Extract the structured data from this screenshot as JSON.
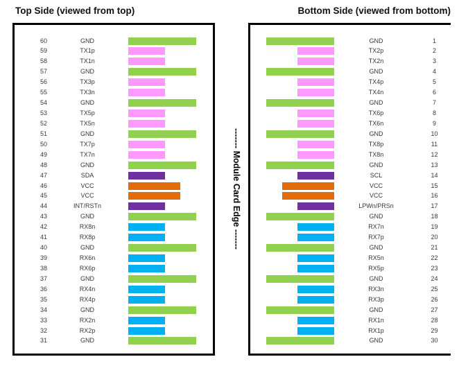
{
  "titles": {
    "left": "Top Side (viewed from top)",
    "right": "Bottom Side (viewed from bottom)"
  },
  "edge_label": "------- Module Card Edge -------",
  "colors": {
    "gnd": "#92d050",
    "tx": "#ff99ff",
    "rx": "#00b0f0",
    "vcc": "#e36c0a",
    "ctrl": "#7030a0"
  },
  "bar_widths": {
    "gnd": 98,
    "vcc": 75,
    "signal": 53
  },
  "top_side": {
    "pins": [
      {
        "pin": 60,
        "name": "GND",
        "type": "gnd"
      },
      {
        "pin": 59,
        "name": "TX1p",
        "type": "tx"
      },
      {
        "pin": 58,
        "name": "TX1n",
        "type": "tx"
      },
      {
        "pin": 57,
        "name": "GND",
        "type": "gnd"
      },
      {
        "pin": 56,
        "name": "TX3p",
        "type": "tx"
      },
      {
        "pin": 55,
        "name": "TX3n",
        "type": "tx"
      },
      {
        "pin": 54,
        "name": "GND",
        "type": "gnd"
      },
      {
        "pin": 53,
        "name": "TX5p",
        "type": "tx"
      },
      {
        "pin": 52,
        "name": "TX5n",
        "type": "tx"
      },
      {
        "pin": 51,
        "name": "GND",
        "type": "gnd"
      },
      {
        "pin": 50,
        "name": "TX7p",
        "type": "tx"
      },
      {
        "pin": 49,
        "name": "TX7n",
        "type": "tx"
      },
      {
        "pin": 48,
        "name": "GND",
        "type": "gnd"
      },
      {
        "pin": 47,
        "name": "SDA",
        "type": "ctrl"
      },
      {
        "pin": 46,
        "name": "VCC",
        "type": "vcc"
      },
      {
        "pin": 45,
        "name": "VCC",
        "type": "vcc"
      },
      {
        "pin": 44,
        "name": "INT/RSTn",
        "type": "ctrl"
      },
      {
        "pin": 43,
        "name": "GND",
        "type": "gnd"
      },
      {
        "pin": 42,
        "name": "RX8n",
        "type": "rx"
      },
      {
        "pin": 41,
        "name": "RX8p",
        "type": "rx"
      },
      {
        "pin": 40,
        "name": "GND",
        "type": "gnd"
      },
      {
        "pin": 39,
        "name": "RX6n",
        "type": "rx"
      },
      {
        "pin": 38,
        "name": "RX6p",
        "type": "rx"
      },
      {
        "pin": 37,
        "name": "GND",
        "type": "gnd"
      },
      {
        "pin": 36,
        "name": "RX4n",
        "type": "rx"
      },
      {
        "pin": 35,
        "name": "RX4p",
        "type": "rx"
      },
      {
        "pin": 34,
        "name": "GND",
        "type": "gnd"
      },
      {
        "pin": 33,
        "name": "RX2n",
        "type": "rx"
      },
      {
        "pin": 32,
        "name": "RX2p",
        "type": "rx"
      },
      {
        "pin": 31,
        "name": "GND",
        "type": "gnd"
      }
    ]
  },
  "bottom_side": {
    "pins": [
      {
        "pin": 1,
        "name": "GND",
        "type": "gnd"
      },
      {
        "pin": 2,
        "name": "TX2p",
        "type": "tx"
      },
      {
        "pin": 3,
        "name": "TX2n",
        "type": "tx"
      },
      {
        "pin": 4,
        "name": "GND",
        "type": "gnd"
      },
      {
        "pin": 5,
        "name": "TX4p",
        "type": "tx"
      },
      {
        "pin": 6,
        "name": "TX4n",
        "type": "tx"
      },
      {
        "pin": 7,
        "name": "GND",
        "type": "gnd"
      },
      {
        "pin": 8,
        "name": "TX6p",
        "type": "tx"
      },
      {
        "pin": 9,
        "name": "TX6n",
        "type": "tx"
      },
      {
        "pin": 10,
        "name": "GND",
        "type": "gnd"
      },
      {
        "pin": 11,
        "name": "TX8p",
        "type": "tx"
      },
      {
        "pin": 12,
        "name": "TX8n",
        "type": "tx"
      },
      {
        "pin": 13,
        "name": "GND",
        "type": "gnd"
      },
      {
        "pin": 14,
        "name": "SCL",
        "type": "ctrl"
      },
      {
        "pin": 15,
        "name": "VCC",
        "type": "vcc"
      },
      {
        "pin": 16,
        "name": "VCC",
        "type": "vcc"
      },
      {
        "pin": 17,
        "name": "LPWn/PRSn",
        "type": "ctrl"
      },
      {
        "pin": 18,
        "name": "GND",
        "type": "gnd"
      },
      {
        "pin": 19,
        "name": "RX7n",
        "type": "rx"
      },
      {
        "pin": 20,
        "name": "RX7p",
        "type": "rx"
      },
      {
        "pin": 21,
        "name": "GND",
        "type": "gnd"
      },
      {
        "pin": 22,
        "name": "RX5n",
        "type": "rx"
      },
      {
        "pin": 23,
        "name": "RX5p",
        "type": "rx"
      },
      {
        "pin": 24,
        "name": "GND",
        "type": "gnd"
      },
      {
        "pin": 25,
        "name": "RX3n",
        "type": "rx"
      },
      {
        "pin": 26,
        "name": "RX3p",
        "type": "rx"
      },
      {
        "pin": 27,
        "name": "GND",
        "type": "gnd"
      },
      {
        "pin": 28,
        "name": "RX1n",
        "type": "rx"
      },
      {
        "pin": 29,
        "name": "RX1p",
        "type": "rx"
      },
      {
        "pin": 30,
        "name": "GND",
        "type": "gnd"
      }
    ]
  }
}
